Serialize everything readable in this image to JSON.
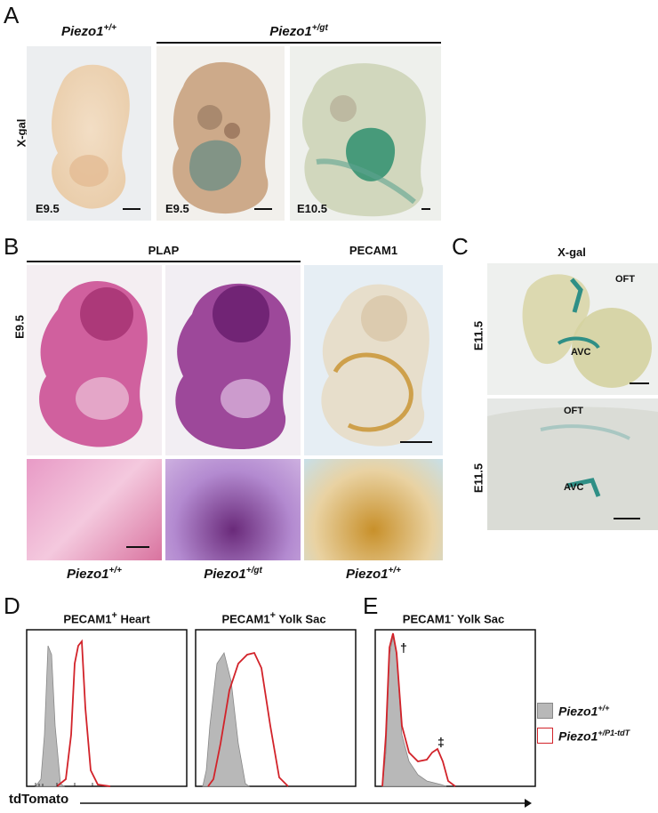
{
  "panel_letters": {
    "a": "A",
    "b": "B",
    "c": "C",
    "d": "D",
    "e": "E"
  },
  "panel_a": {
    "wt_genotype": {
      "base": "Piezo1",
      "sup": "+/+"
    },
    "gt_genotype": {
      "base": "Piezo1",
      "sup": "+/gt"
    },
    "stain_label": "X-gal",
    "stages": [
      "E9.5",
      "E9.5",
      "E10.5"
    ]
  },
  "panel_b": {
    "plap_header": "PLAP",
    "pecam_header": "PECAM1",
    "stage_label": "E9.5",
    "genotypes": [
      {
        "base": "Piezo1",
        "sup": "+/+"
      },
      {
        "base": "Piezo1",
        "sup": "+/gt"
      },
      {
        "base": "Piezo1",
        "sup": "+/+"
      }
    ]
  },
  "panel_c": {
    "header": "X-gal",
    "stage_top": "E11.5",
    "stage_bottom": "E11.5",
    "oft_top": "OFT",
    "avc_top": "AVC",
    "oft_bottom": "OFT",
    "avc_bottom": "AVC"
  },
  "panel_d": {
    "title_left": {
      "base": "PECAM1",
      "sup": "+",
      "rest": " Heart"
    },
    "title_right": {
      "base": "PECAM1",
      "sup": "+",
      "rest": " Yolk Sac"
    },
    "x_axis_label": "tdTomato"
  },
  "panel_e": {
    "title": {
      "base": "PECAM1",
      "sup": "-",
      "rest": " Yolk Sac"
    },
    "dagger": "†",
    "double_dagger": "‡"
  },
  "legend": {
    "items": [
      {
        "base": "Piezo1",
        "sup": "+/+",
        "fill": "#b8b8b8",
        "stroke": "#888888"
      },
      {
        "base": "Piezo1",
        "sup": "+/P1-tdT",
        "fill": "#ffffff",
        "stroke": "#d2232a"
      }
    ]
  },
  "colors": {
    "gray_fill": "#b8b8b8",
    "red_line": "#d2232a",
    "xgal_blue": "#2f8f86",
    "plap_purple": "#a8327e",
    "pecam_brown": "#c8902a"
  }
}
